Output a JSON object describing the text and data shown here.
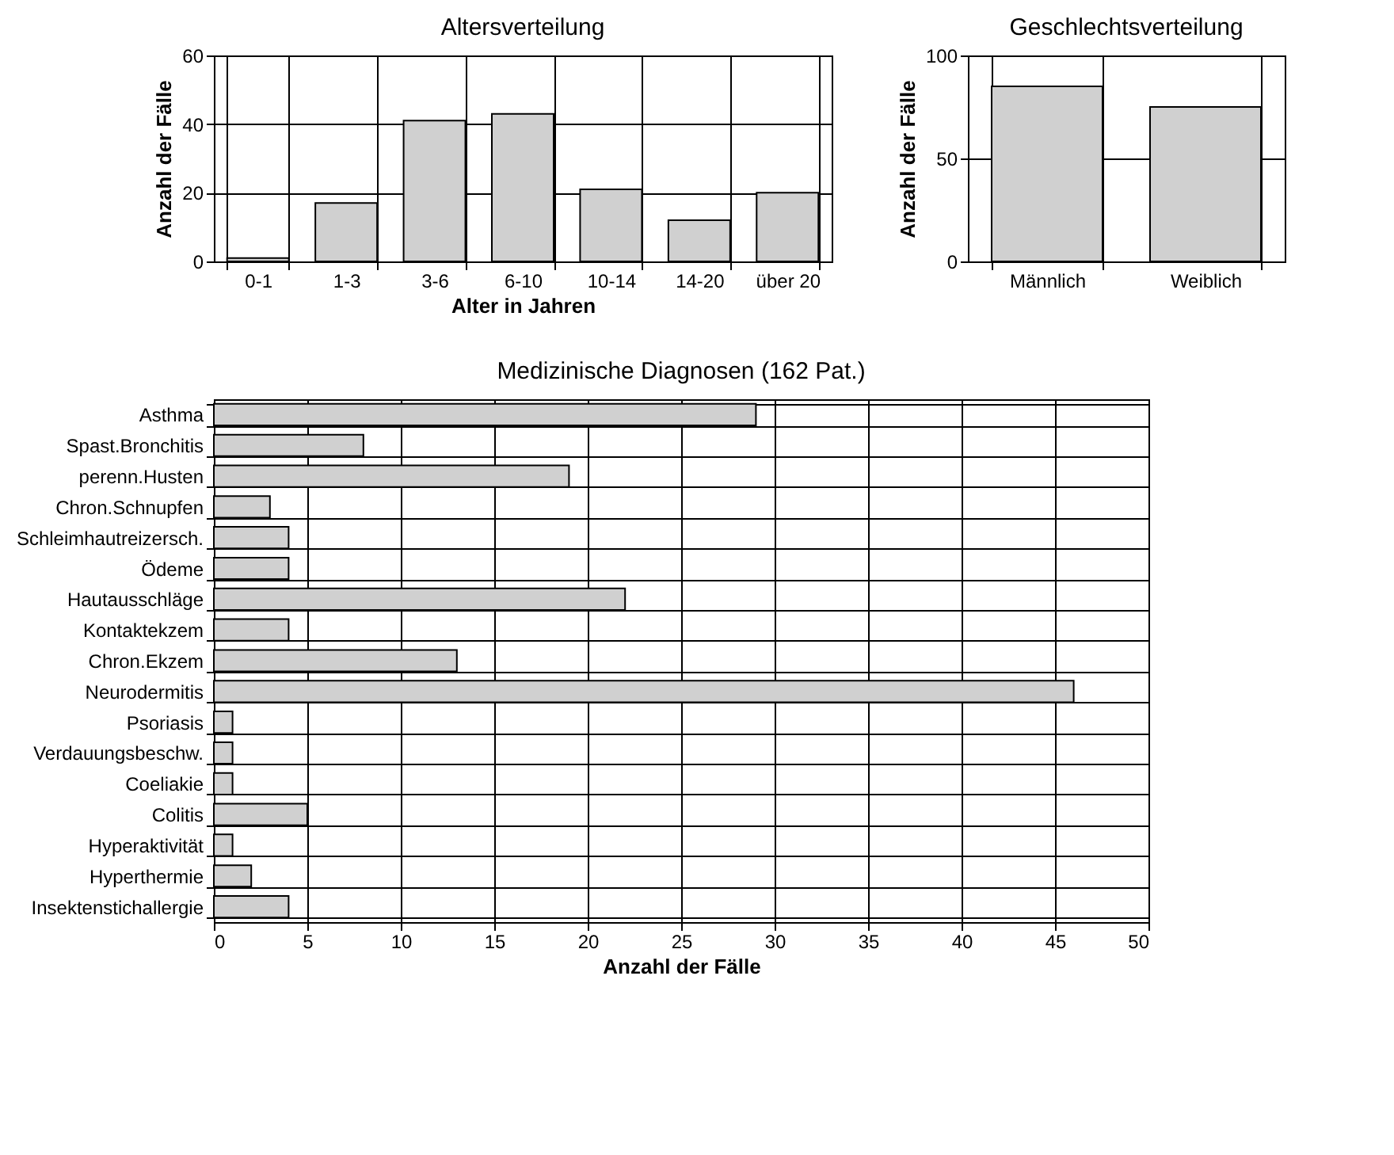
{
  "chart_data": [
    {
      "type": "bar",
      "title": "Altersverteilung",
      "xlabel": "Alter in Jahren",
      "ylabel": "Anzahl der Fälle",
      "categories": [
        "0-1",
        "1-3",
        "3-6",
        "6-10",
        "10-14",
        "14-20",
        "über 20"
      ],
      "values": [
        1,
        17,
        41,
        43,
        21,
        12,
        20
      ],
      "color": "#d0d0d0",
      "ylim": [
        0,
        60
      ],
      "yticks": [
        0,
        20,
        40,
        60
      ],
      "grid": true
    },
    {
      "type": "bar",
      "title": "Geschlechtsverteilung",
      "ylabel": "Anzahl der Fälle",
      "categories": [
        "Männlich",
        "Weiblich"
      ],
      "values": [
        85,
        75
      ],
      "color": "#d0d0d0",
      "ylim": [
        0,
        100
      ],
      "yticks": [
        0,
        50,
        100
      ],
      "grid": true
    },
    {
      "type": "bar",
      "orientation": "horizontal",
      "title": "Medizinische Diagnosen (162 Pat.)",
      "xlabel": "Anzahl der Fälle",
      "categories": [
        "Asthma",
        "Spast.Bronchitis",
        "perenn.Husten",
        "Chron.Schnupfen",
        "Schleimhautreizersch.",
        "Ödeme",
        "Hautausschläge",
        "Kontaktekzem",
        "Chron.Ekzem",
        "Neurodermitis",
        "Psoriasis",
        "Verdauungsbeschw.",
        "Coeliakie",
        "Colitis",
        "Hyperaktivität",
        "Hyperthermie",
        "Insektenstichallergie"
      ],
      "values": [
        29,
        8,
        19,
        3,
        4,
        4,
        22,
        4,
        13,
        46,
        1,
        1,
        1,
        5,
        1,
        2,
        4
      ],
      "color": "#d0d0d0",
      "xlim": [
        0,
        50
      ],
      "xticks": [
        0,
        5,
        10,
        15,
        20,
        25,
        30,
        35,
        40,
        45,
        50
      ],
      "grid": true
    }
  ]
}
